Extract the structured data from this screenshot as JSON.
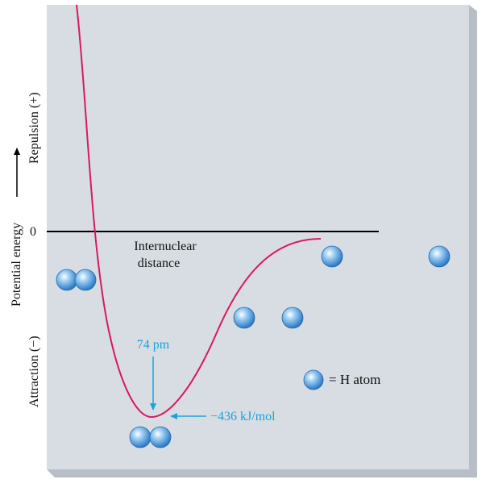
{
  "chart_data": {
    "type": "line",
    "title": "",
    "xlabel": "Internuclear distance",
    "ylabel": {
      "axis": "Potential energy",
      "positive": "Repulsion (+)",
      "negative": "Attraction (−)"
    },
    "zero_label": "0",
    "minimum": {
      "distance_label": "74 pm",
      "energy_label": "−436 kJ/mol",
      "distance_pm": 74,
      "energy_kj_mol": -436
    },
    "legend_label": "= H atom",
    "colors": {
      "curve": "#d9195f",
      "annotation": "#1aa3d9",
      "panel": "#d8dde3",
      "panel_shadow": "#b8bec6",
      "axis": "#000000",
      "atom": "#3a8fd6"
    }
  }
}
